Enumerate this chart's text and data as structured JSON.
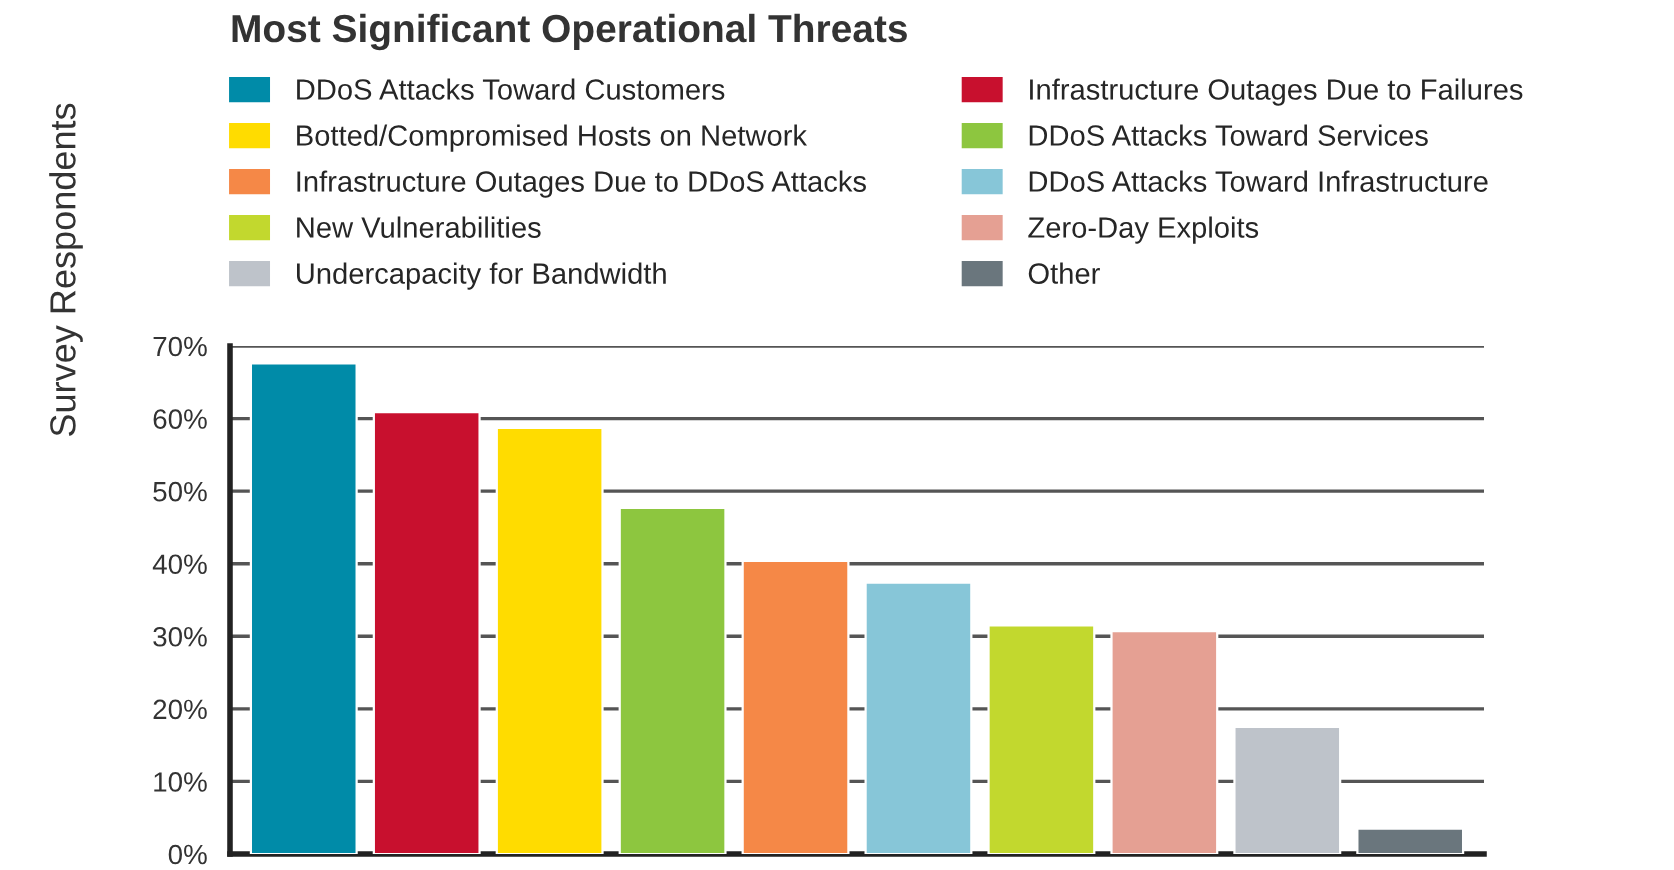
{
  "chart_data": {
    "type": "bar",
    "title": "Most Significant Operational Threats",
    "ylabel": "Survey Respondents",
    "categories": [
      null,
      null,
      null,
      null,
      null,
      null,
      null,
      null,
      null,
      null
    ],
    "series": [
      {
        "name": "DDoS Attacks Toward Customers",
        "color": "#008ba8",
        "values": [
          67.6,
          null,
          null,
          null,
          null,
          null,
          null,
          null,
          null,
          null
        ]
      },
      {
        "name": "Infrastructure Outages Due to Failures",
        "color": "#c8102e",
        "values": [
          null,
          60.9,
          null,
          null,
          null,
          null,
          null,
          null,
          null,
          null
        ]
      },
      {
        "name": "Botted/Compromised Hosts on Network",
        "color": "#ffdc00",
        "values": [
          null,
          null,
          58.7,
          null,
          null,
          null,
          null,
          null,
          null,
          null
        ]
      },
      {
        "name": "DDoS Attacks Toward Services",
        "color": "#8dc63f",
        "values": [
          null,
          null,
          null,
          47.7,
          null,
          null,
          null,
          null,
          null,
          null
        ]
      },
      {
        "name": "Infrastructure Outages Due to DDoS Attacks",
        "color": "#f58847",
        "values": [
          null,
          null,
          null,
          null,
          40.4,
          null,
          null,
          null,
          null,
          null
        ]
      },
      {
        "name": "DDoS Attacks Toward Infrastructure",
        "color": "#87c6d8",
        "values": [
          null,
          null,
          null,
          null,
          null,
          37.4,
          null,
          null,
          null,
          null
        ]
      },
      {
        "name": "New Vulnerabilities",
        "color": "#c2d82e",
        "values": [
          null,
          null,
          null,
          null,
          null,
          null,
          31.5,
          null,
          null,
          null
        ]
      },
      {
        "name": "Zero-Day Exploits",
        "color": "#e5a093",
        "values": [
          null,
          null,
          null,
          null,
          null,
          null,
          null,
          30.7,
          null,
          null
        ]
      },
      {
        "name": "Undercapacity for Bandwidth",
        "color": "#bec3ca",
        "values": [
          null,
          null,
          null,
          null,
          null,
          null,
          null,
          null,
          17.5,
          null
        ]
      },
      {
        "name": "Other",
        "color": "#6a767d",
        "values": [
          null,
          null,
          null,
          null,
          null,
          null,
          null,
          null,
          null,
          3.5
        ]
      }
    ],
    "ylim": [
      0,
      70
    ],
    "yticks": [
      {
        "value": 0,
        "label": "0%"
      },
      {
        "value": 10,
        "label": "10%"
      },
      {
        "value": 20,
        "label": "20%"
      },
      {
        "value": 30,
        "label": "30%"
      },
      {
        "value": 40,
        "label": "40%"
      },
      {
        "value": 50,
        "label": "50%"
      },
      {
        "value": 60,
        "label": "60%"
      },
      {
        "value": 70,
        "label": "70%"
      }
    ],
    "grid": "y",
    "legend": "top",
    "tick_labels": "y"
  }
}
